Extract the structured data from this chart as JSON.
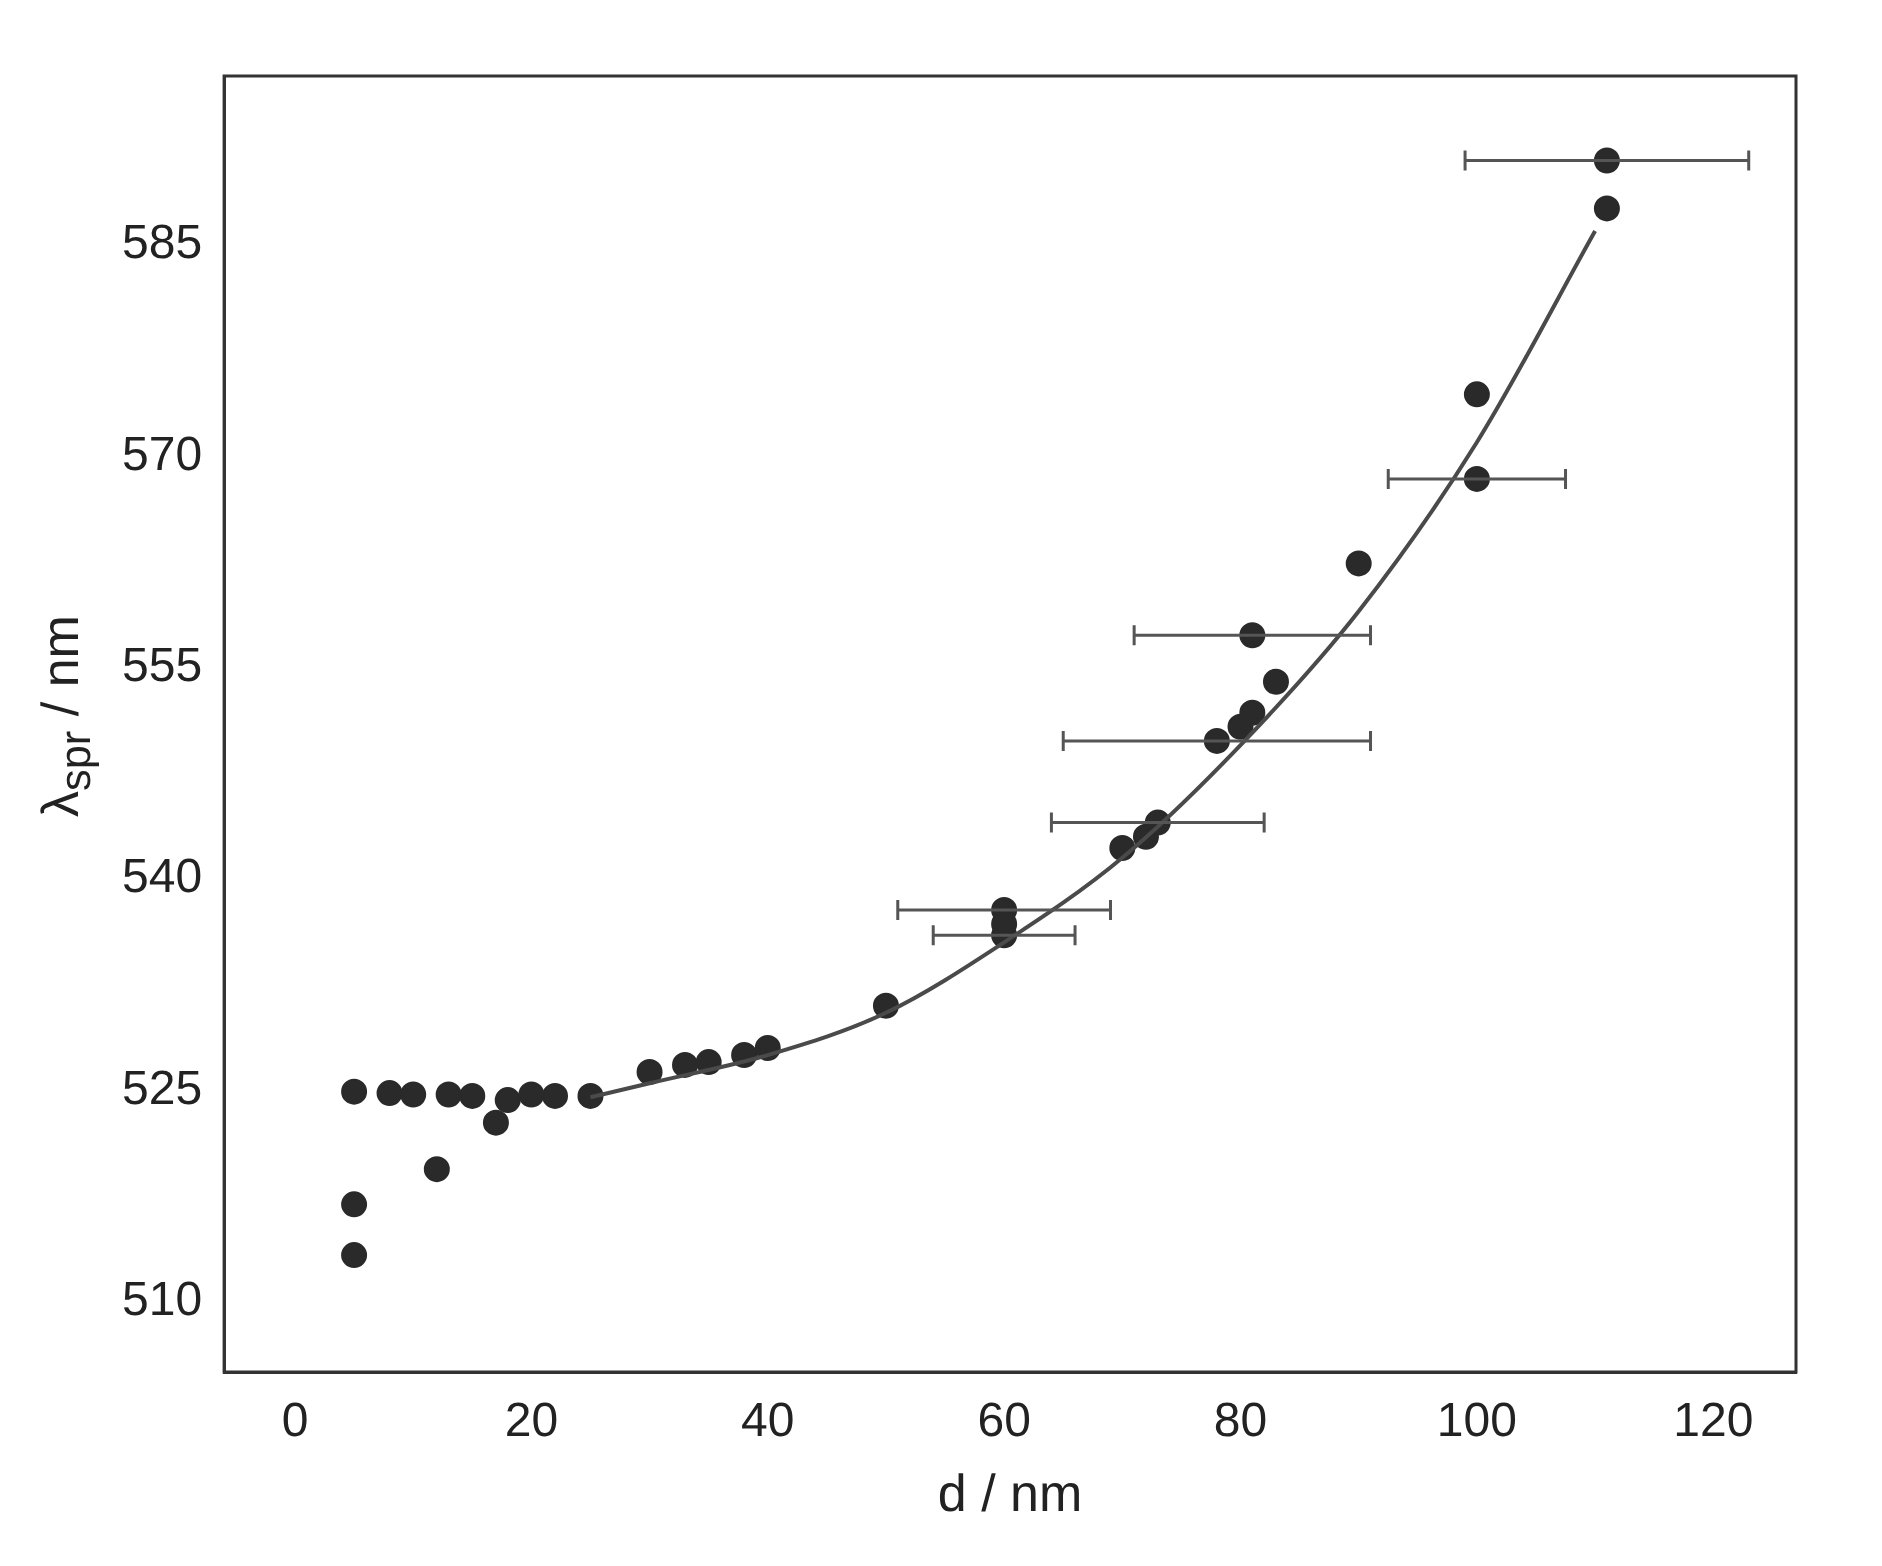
{
  "chart_data": {
    "type": "scatter",
    "xlabel": "d / nm",
    "ylabel": "λ$_{spr}$ / nm",
    "xlim": [
      -6,
      127
    ],
    "ylim": [
      505,
      597
    ],
    "xticks": [
      0,
      20,
      40,
      60,
      80,
      100,
      120
    ],
    "yticks": [
      510,
      525,
      540,
      555,
      570,
      585
    ],
    "grid": false,
    "legend": false,
    "series": [
      {
        "color": "#2a2a2a",
        "marker": "circle",
        "x": [
          5,
          5,
          5,
          8,
          10,
          12,
          13,
          15,
          17,
          18,
          20,
          22,
          25,
          30,
          33,
          35,
          38,
          40,
          50,
          60,
          60,
          60,
          70,
          72,
          73,
          78,
          80,
          81,
          81,
          83,
          90,
          100,
          100,
          111,
          111
        ],
        "values": [
          513.3,
          516.9,
          524.9,
          524.8,
          524.7,
          519.4,
          524.7,
          524.6,
          522.7,
          524.3,
          524.7,
          524.6,
          524.6,
          526.3,
          526.8,
          527,
          527.5,
          528,
          531,
          537.8,
          536.8,
          536,
          542.2,
          543,
          544,
          549.8,
          550.8,
          551.8,
          557.3,
          554,
          562.4,
          568.4,
          574.4,
          587.6,
          591
        ],
        "xerrors": [
          null,
          null,
          null,
          null,
          null,
          null,
          null,
          null,
          null,
          null,
          null,
          null,
          null,
          null,
          null,
          null,
          null,
          null,
          null,
          9,
          null,
          6,
          null,
          null,
          9,
          13,
          null,
          null,
          10,
          null,
          null,
          7.5,
          null,
          null,
          12
        ]
      },
      {
        "type": "line",
        "marker": "none",
        "color": "#4a4a4a",
        "x": [
          25,
          30,
          40,
          50,
          60,
          70,
          80,
          90,
          100,
          110
        ],
        "values": [
          524.5,
          525.5,
          527.5,
          530.5,
          535.5,
          541.5,
          549.5,
          559,
          571,
          586
        ]
      }
    ]
  }
}
